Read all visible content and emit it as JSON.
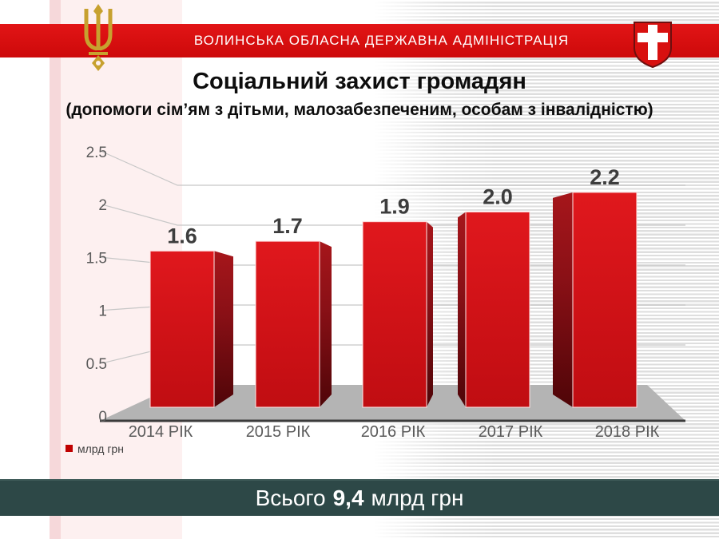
{
  "header": {
    "org_name": "ВОЛИНСЬКА ОБЛАСНА ДЕРЖАВНА АДМІНІСТРАЦІЯ",
    "band_color": "#d8100f",
    "trident_icon": "ukraine-trident",
    "shield_icon": "volyn-coat-of-arms"
  },
  "title": "Соціальний захист громадян",
  "subtitle": "(допомоги сім’ям з дітьми, малозабезпеченим, особам з інвалідністю)",
  "chart_data": {
    "type": "bar",
    "style": "3d-perspective",
    "title": "Соціальний захист громадян",
    "categories": [
      "2014 РІК",
      "2015 РІК",
      "2016 РІК",
      "2017 РІК",
      "2018 РІК"
    ],
    "values": [
      1.6,
      1.7,
      1.9,
      2.0,
      2.2
    ],
    "value_labels": [
      "1.6",
      "1.7",
      "1.9",
      "2.0",
      "2.2"
    ],
    "y_ticks": [
      "2.5",
      "2",
      "1.5",
      "1",
      "0.5",
      "0"
    ],
    "ylim": [
      0,
      2.5
    ],
    "xlabel": "",
    "ylabel": "",
    "legend": "млрд грн",
    "legend_position": "bottom-left",
    "grid": true,
    "bar_color": "#d01217",
    "bar_side_color": "#5a070b",
    "floor_color": "#b4b4b4"
  },
  "footer": {
    "total_prefix": "Всього",
    "total_value": "9,4",
    "total_suffix": "млрд грн",
    "banner_color": "#2d4847"
  }
}
